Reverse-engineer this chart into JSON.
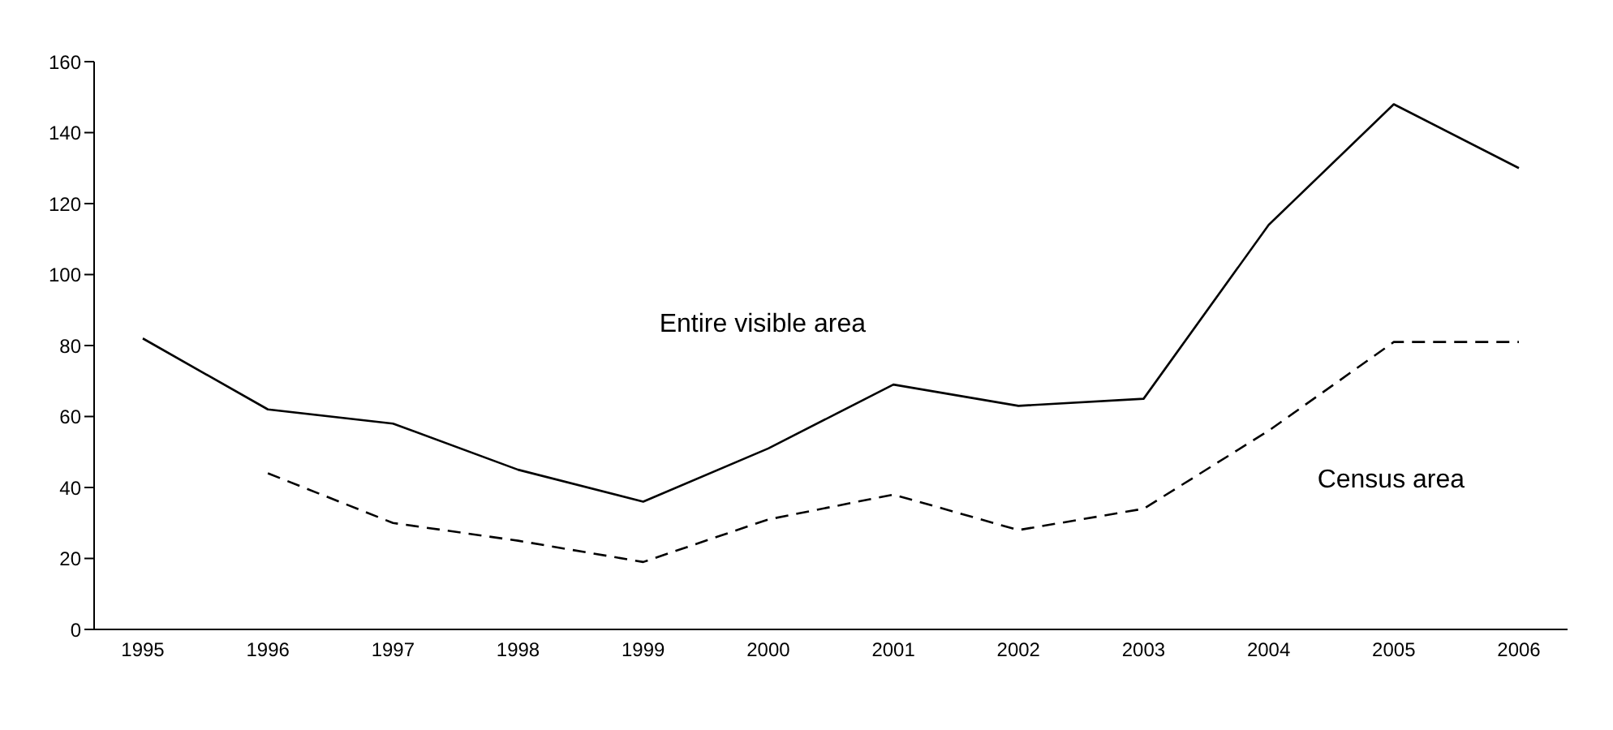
{
  "chart_data": {
    "type": "line",
    "categories": [
      "1995",
      "1996",
      "1997",
      "1998",
      "1999",
      "2000",
      "2001",
      "2002",
      "2003",
      "2004",
      "2005",
      "2006"
    ],
    "series": [
      {
        "name": "Entire visible area",
        "color": "#000000",
        "line_style": "solid",
        "values": [
          82,
          62,
          58,
          45,
          36,
          51,
          69,
          63,
          65,
          114,
          148,
          130
        ]
      },
      {
        "name": "Census area",
        "color": "#000000",
        "line_style": "dashed",
        "values": [
          null,
          44,
          30,
          25,
          19,
          31,
          38,
          28,
          34,
          56,
          81,
          81
        ]
      }
    ],
    "ylim": [
      0,
      160
    ],
    "yticks": [
      0,
      20,
      40,
      60,
      80,
      100,
      120,
      140,
      160
    ],
    "grid": false,
    "legend": false,
    "marker": "none"
  }
}
